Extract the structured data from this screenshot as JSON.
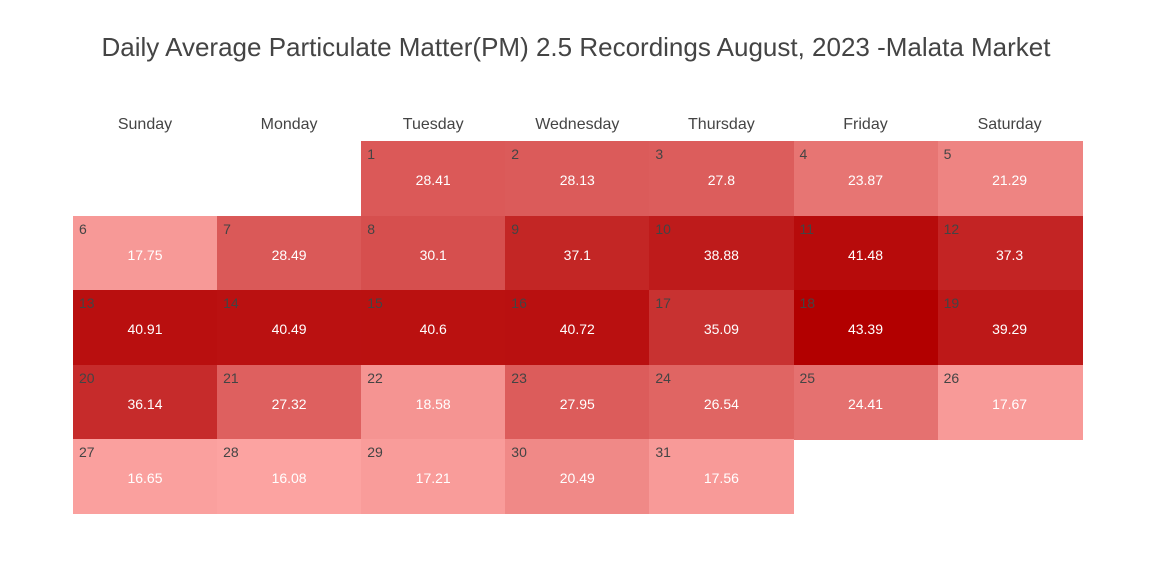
{
  "chart_data": {
    "type": "heatmap",
    "title": "Daily Average Particulate Matter(PM) 2.5 Recordings August, 2023 -Malata Market",
    "weekdays": [
      "Sunday",
      "Monday",
      "Tuesday",
      "Wednesday",
      "Thursday",
      "Friday",
      "Saturday"
    ],
    "first_weekday_index": 2,
    "days": [
      1,
      2,
      3,
      4,
      5,
      6,
      7,
      8,
      9,
      10,
      11,
      12,
      13,
      14,
      15,
      16,
      17,
      18,
      19,
      20,
      21,
      22,
      23,
      24,
      25,
      26,
      27,
      28,
      29,
      30,
      31
    ],
    "values": [
      28.41,
      28.13,
      27.8,
      23.87,
      21.29,
      17.75,
      28.49,
      30.1,
      37.1,
      38.88,
      41.48,
      37.3,
      40.91,
      40.49,
      40.6,
      40.72,
      35.09,
      43.39,
      39.29,
      36.14,
      27.32,
      18.58,
      27.95,
      26.54,
      24.41,
      17.67,
      16.65,
      16.08,
      17.21,
      20.49,
      17.56
    ],
    "color_low": "#fca3a1",
    "color_high": "#b20000"
  }
}
